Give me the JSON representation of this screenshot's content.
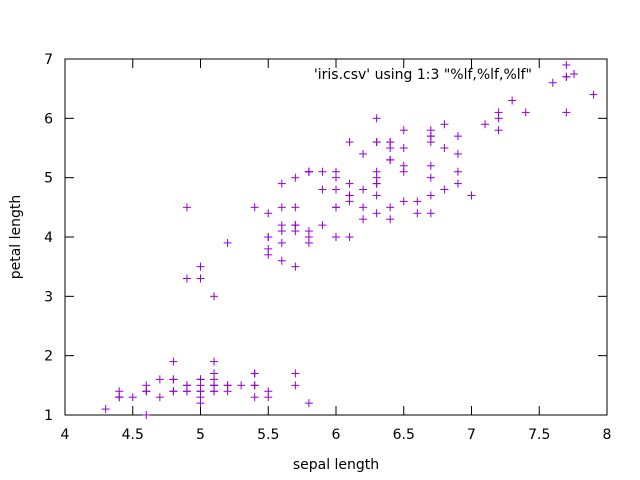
{
  "chart_data": {
    "type": "scatter",
    "title": "",
    "xlabel": "sepal length",
    "ylabel": "petal length",
    "xlim": [
      4,
      8
    ],
    "ylim": [
      1,
      7
    ],
    "x_ticks": [
      "4",
      "4.5",
      "5",
      "5.5",
      "6",
      "6.5",
      "7",
      "7.5",
      "8"
    ],
    "y_ticks": [
      "1",
      "2",
      "3",
      "4",
      "5",
      "6",
      "7"
    ],
    "grid": false,
    "legend_position": "top-right",
    "marker": "plus",
    "colors": {
      "series": "#9400d3",
      "axes": "#000000",
      "background": "#ffffff"
    },
    "series": [
      {
        "name": "'iris.csv' using 1:3 \"%lf,%lf,%lf\"",
        "points": [
          [
            5.1,
            1.4
          ],
          [
            4.9,
            1.4
          ],
          [
            4.7,
            1.3
          ],
          [
            4.6,
            1.5
          ],
          [
            5.0,
            1.4
          ],
          [
            5.4,
            1.7
          ],
          [
            4.6,
            1.4
          ],
          [
            5.0,
            1.5
          ],
          [
            4.4,
            1.4
          ],
          [
            4.9,
            1.5
          ],
          [
            5.4,
            1.5
          ],
          [
            4.8,
            1.6
          ],
          [
            4.8,
            1.4
          ],
          [
            4.3,
            1.1
          ],
          [
            5.8,
            1.2
          ],
          [
            5.7,
            1.5
          ],
          [
            5.4,
            1.3
          ],
          [
            5.1,
            1.4
          ],
          [
            5.7,
            1.7
          ],
          [
            5.1,
            1.5
          ],
          [
            5.4,
            1.7
          ],
          [
            5.1,
            1.5
          ],
          [
            4.6,
            1.0
          ],
          [
            5.1,
            1.7
          ],
          [
            4.8,
            1.9
          ],
          [
            5.0,
            1.6
          ],
          [
            5.0,
            1.6
          ],
          [
            5.2,
            1.5
          ],
          [
            5.2,
            1.4
          ],
          [
            4.7,
            1.6
          ],
          [
            4.8,
            1.6
          ],
          [
            5.4,
            1.5
          ],
          [
            5.2,
            1.5
          ],
          [
            5.5,
            1.4
          ],
          [
            4.9,
            1.5
          ],
          [
            5.0,
            1.2
          ],
          [
            5.5,
            1.3
          ],
          [
            4.9,
            1.4
          ],
          [
            4.4,
            1.3
          ],
          [
            5.1,
            1.5
          ],
          [
            5.0,
            1.3
          ],
          [
            4.5,
            1.3
          ],
          [
            4.4,
            1.3
          ],
          [
            5.0,
            1.6
          ],
          [
            5.1,
            1.9
          ],
          [
            4.8,
            1.4
          ],
          [
            5.1,
            1.6
          ],
          [
            4.6,
            1.4
          ],
          [
            5.3,
            1.5
          ],
          [
            5.0,
            1.4
          ],
          [
            7.0,
            4.7
          ],
          [
            6.4,
            4.5
          ],
          [
            6.9,
            4.9
          ],
          [
            5.5,
            4.0
          ],
          [
            6.5,
            4.6
          ],
          [
            5.7,
            4.5
          ],
          [
            6.3,
            4.7
          ],
          [
            4.9,
            3.3
          ],
          [
            6.6,
            4.6
          ],
          [
            5.2,
            3.9
          ],
          [
            5.0,
            3.5
          ],
          [
            5.9,
            4.2
          ],
          [
            6.0,
            4.0
          ],
          [
            6.1,
            4.7
          ],
          [
            5.6,
            3.6
          ],
          [
            6.7,
            4.4
          ],
          [
            5.6,
            4.5
          ],
          [
            5.8,
            4.1
          ],
          [
            6.2,
            4.5
          ],
          [
            5.6,
            3.9
          ],
          [
            5.9,
            4.8
          ],
          [
            6.1,
            4.0
          ],
          [
            6.3,
            4.9
          ],
          [
            6.1,
            4.7
          ],
          [
            6.4,
            4.3
          ],
          [
            6.6,
            4.4
          ],
          [
            6.8,
            4.8
          ],
          [
            6.7,
            5.0
          ],
          [
            6.0,
            4.5
          ],
          [
            5.7,
            3.5
          ],
          [
            5.5,
            3.8
          ],
          [
            5.5,
            3.7
          ],
          [
            5.8,
            3.9
          ],
          [
            6.0,
            5.1
          ],
          [
            5.4,
            4.5
          ],
          [
            6.0,
            4.5
          ],
          [
            6.7,
            4.7
          ],
          [
            6.3,
            4.4
          ],
          [
            5.6,
            4.1
          ],
          [
            5.5,
            4.0
          ],
          [
            5.5,
            4.4
          ],
          [
            6.1,
            4.6
          ],
          [
            5.8,
            4.0
          ],
          [
            5.0,
            3.3
          ],
          [
            5.6,
            4.2
          ],
          [
            5.7,
            4.2
          ],
          [
            5.7,
            4.2
          ],
          [
            6.2,
            4.3
          ],
          [
            5.1,
            3.0
          ],
          [
            5.7,
            4.1
          ],
          [
            6.3,
            6.0
          ],
          [
            5.8,
            5.1
          ],
          [
            7.1,
            5.9
          ],
          [
            6.3,
            5.6
          ],
          [
            6.5,
            5.8
          ],
          [
            7.6,
            6.6
          ],
          [
            4.9,
            4.5
          ],
          [
            7.3,
            6.3
          ],
          [
            6.7,
            5.8
          ],
          [
            7.2,
            6.1
          ],
          [
            6.5,
            5.1
          ],
          [
            6.4,
            5.3
          ],
          [
            6.8,
            5.5
          ],
          [
            5.7,
            5.0
          ],
          [
            5.8,
            5.1
          ],
          [
            6.4,
            5.3
          ],
          [
            6.5,
            5.5
          ],
          [
            7.7,
            6.7
          ],
          [
            7.7,
            6.9
          ],
          [
            6.0,
            5.0
          ],
          [
            6.9,
            5.7
          ],
          [
            5.6,
            4.9
          ],
          [
            7.7,
            6.7
          ],
          [
            6.3,
            4.9
          ],
          [
            6.7,
            5.7
          ],
          [
            7.2,
            6.0
          ],
          [
            6.2,
            4.8
          ],
          [
            6.1,
            4.9
          ],
          [
            6.4,
            5.6
          ],
          [
            7.2,
            5.8
          ],
          [
            7.4,
            6.1
          ],
          [
            7.9,
            6.4
          ],
          [
            6.4,
            5.6
          ],
          [
            6.3,
            5.1
          ],
          [
            6.1,
            5.6
          ],
          [
            7.7,
            6.1
          ],
          [
            6.3,
            5.6
          ],
          [
            6.4,
            5.5
          ],
          [
            6.0,
            4.8
          ],
          [
            6.9,
            5.4
          ],
          [
            6.7,
            5.6
          ],
          [
            6.9,
            5.1
          ],
          [
            5.8,
            5.1
          ],
          [
            6.8,
            5.9
          ],
          [
            6.7,
            5.7
          ],
          [
            6.7,
            5.2
          ],
          [
            6.3,
            5.0
          ],
          [
            6.5,
            5.2
          ],
          [
            6.2,
            5.4
          ],
          [
            5.9,
            5.1
          ]
        ]
      }
    ]
  }
}
